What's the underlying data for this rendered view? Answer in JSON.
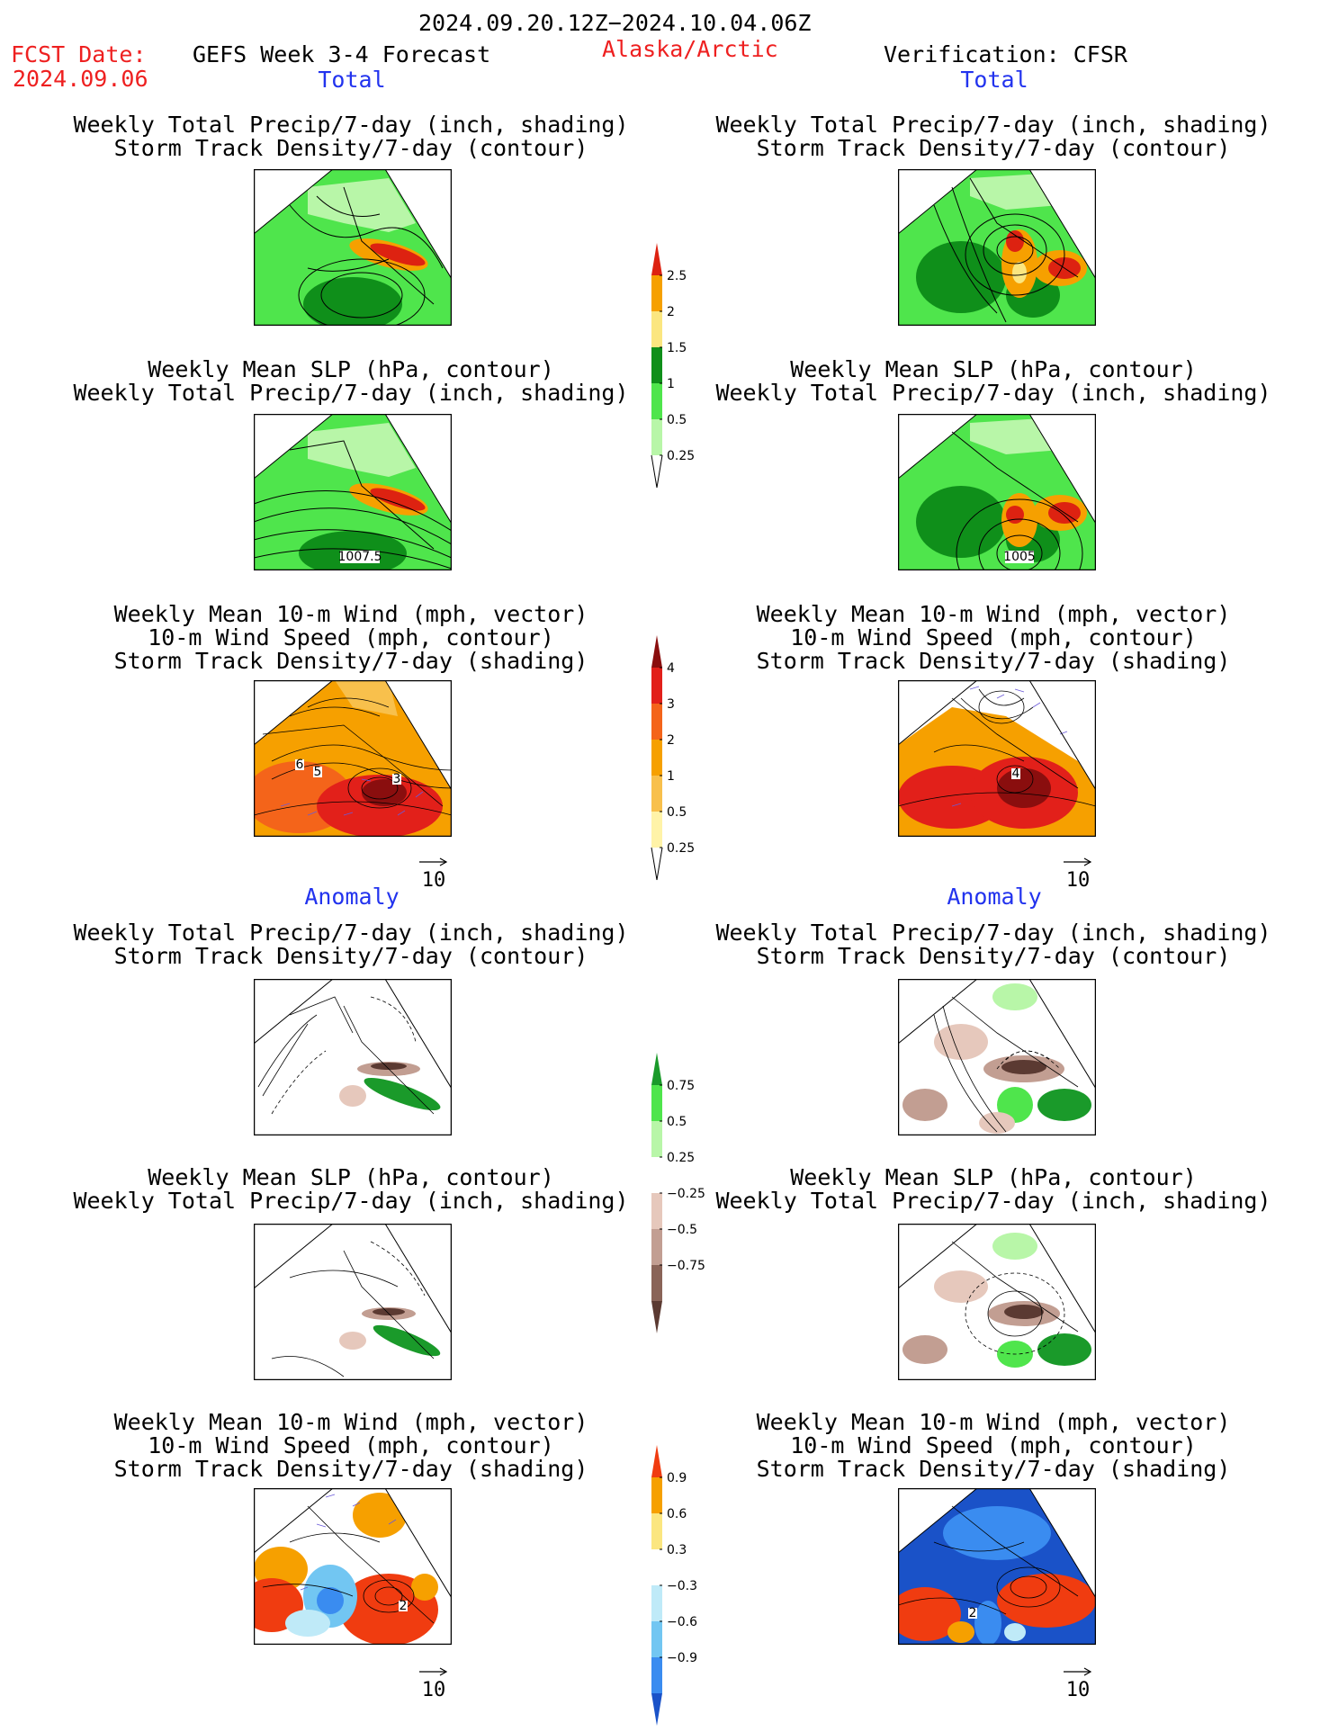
{
  "header": {
    "date_range": "2024.09.20.12Z−2024.10.04.06Z",
    "fcst_date_label": "FCST Date:",
    "fcst_date": "2024.09.06",
    "product": "GEFS Week 3-4 Forecast",
    "region": "Alaska/Arctic",
    "verification": "Verification: CFSR"
  },
  "columns": {
    "left": {
      "total": "Total",
      "anomaly": "Anomaly"
    },
    "right": {
      "total": "Total",
      "anomaly": "Anomaly"
    }
  },
  "titles": {
    "p1_l1": "Weekly Total Precip/7-day (inch, shading)",
    "p1_l2": "Storm Track Density/7-day (contour)",
    "p2_l1": "Weekly Mean SLP (hPa, contour)",
    "p2_l2": "Weekly Total Precip/7-day (inch, shading)",
    "p3_l1": "Weekly Mean 10-m Wind (mph, vector)",
    "p3_l2": "10-m Wind Speed (mph, contour)",
    "p3_l3": "Storm Track Density/7-day (shading)"
  },
  "map_labels": {
    "left_slp": "1007.5",
    "right_slp": "1005",
    "left_wind": [
      "6",
      "5",
      "3"
    ],
    "right_wind": "4",
    "left_wind_anom": "2",
    "right_wind_anom": "2"
  },
  "vector_reference": "10",
  "colorbars": {
    "precip_total": {
      "labels": [
        "2.5",
        "2",
        "1.5",
        "1",
        "0.5",
        "0.25"
      ],
      "colors": [
        "#dd2211",
        "#f6a000",
        "#fbe680",
        "#0f8f1a",
        "#4fe54c",
        "#b8f6a8"
      ]
    },
    "storm_total": {
      "labels": [
        "4",
        "3",
        "2",
        "1",
        "0.5",
        "0.25"
      ],
      "colors": [
        "#8a0e0e",
        "#e2201a",
        "#f4641a",
        "#f6a000",
        "#f8c04c",
        "#fff3a8"
      ]
    },
    "precip_anom": {
      "labels": [
        "0.75",
        "0.5",
        "0.25",
        "−0.25",
        "−0.5",
        "−0.75"
      ],
      "colors": [
        "#1a9a2a",
        "#4fe54c",
        "#b8f6a8",
        "#ffffff",
        "#e6c8bc",
        "#c29e92",
        "#8a6458",
        "#5b3a32"
      ]
    },
    "storm_anom": {
      "labels": [
        "0.9",
        "0.6",
        "0.3",
        "−0.3",
        "−0.6",
        "−0.9"
      ],
      "colors": [
        "#f03c10",
        "#f6a000",
        "#fbe680",
        "#ffffff",
        "#bfeaf8",
        "#72c6f2",
        "#3a8cf0",
        "#1a52c8"
      ]
    }
  }
}
